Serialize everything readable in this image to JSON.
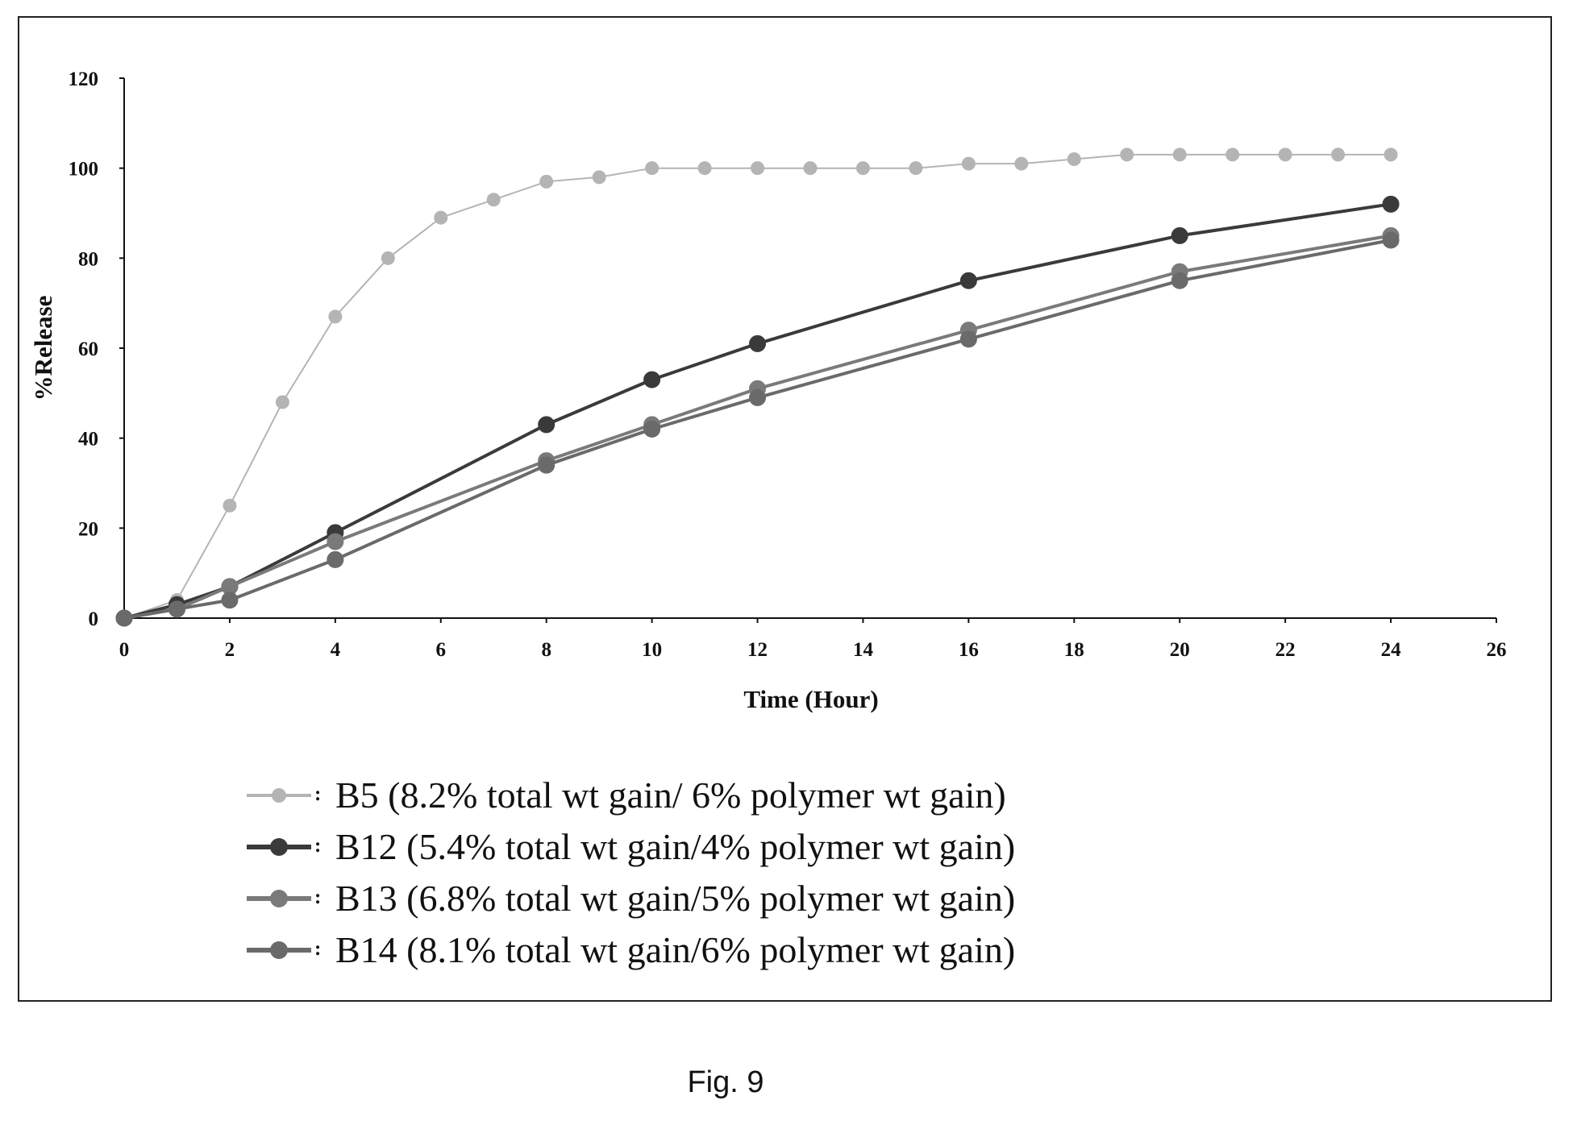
{
  "caption": "Fig. 9",
  "colors": {
    "axis": "#111111",
    "B5": "#b4b4b4",
    "B12": "#3a3a3a",
    "B13": "#7a7a7a",
    "B14": "#6a6a6a"
  },
  "chart_data": {
    "type": "line",
    "title": "",
    "xlabel": "Time (Hour)",
    "ylabel": "%Release",
    "xlim": [
      0,
      26
    ],
    "ylim": [
      0,
      120
    ],
    "xticks": [
      0,
      2,
      4,
      6,
      8,
      10,
      12,
      14,
      16,
      18,
      20,
      22,
      24,
      26
    ],
    "yticks": [
      0,
      20,
      40,
      60,
      80,
      100,
      120
    ],
    "grid": false,
    "legend_position": "bottom",
    "series": [
      {
        "name": "B5 (8.2% total wt gain/ 6% polymer wt gain)",
        "color": "#b4b4b4",
        "x": [
          0,
          1,
          2,
          3,
          4,
          5,
          6,
          7,
          8,
          9,
          10,
          11,
          12,
          13,
          14,
          15,
          16,
          17,
          18,
          19,
          20,
          21,
          22,
          23,
          24
        ],
        "y": [
          0,
          4,
          25,
          48,
          67,
          80,
          89,
          93,
          97,
          98,
          100,
          100,
          100,
          100,
          100,
          100,
          101,
          101,
          102,
          103,
          103,
          103,
          103,
          103,
          103
        ]
      },
      {
        "name": "B12 (5.4% total wt gain/4% polymer wt gain)",
        "color": "#3a3a3a",
        "x": [
          0,
          1,
          2,
          4,
          8,
          10,
          12,
          16,
          20,
          24
        ],
        "y": [
          0,
          3,
          7,
          19,
          43,
          53,
          61,
          75,
          85,
          92
        ]
      },
      {
        "name": "B13 (6.8% total wt gain/5% polymer wt gain)",
        "color": "#7a7a7a",
        "x": [
          0,
          1,
          2,
          4,
          8,
          10,
          12,
          16,
          20,
          24
        ],
        "y": [
          0,
          2,
          7,
          17,
          35,
          43,
          51,
          64,
          77,
          85
        ]
      },
      {
        "name": "B14 (8.1% total wt gain/6% polymer wt gain)",
        "color": "#6a6a6a",
        "x": [
          0,
          1,
          2,
          4,
          8,
          10,
          12,
          16,
          20,
          24
        ],
        "y": [
          0,
          2,
          4,
          13,
          34,
          42,
          49,
          62,
          75,
          84
        ]
      }
    ]
  }
}
